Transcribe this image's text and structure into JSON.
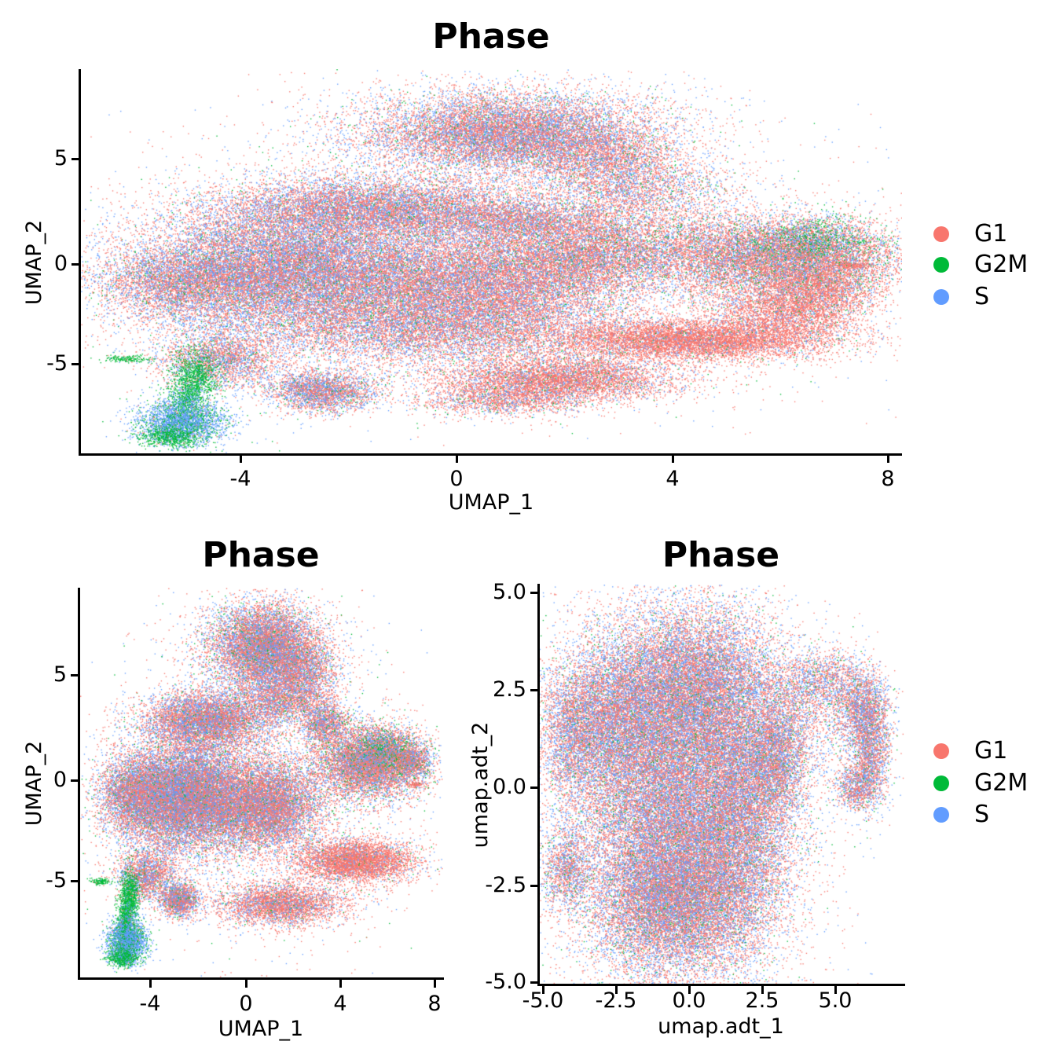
{
  "legend": {
    "items": [
      {
        "label": "G1",
        "color": "#F8766D"
      },
      {
        "label": "G2M",
        "color": "#00BA38"
      },
      {
        "label": "S",
        "color": "#619CFF"
      }
    ]
  },
  "chart_data": {
    "type": "scatter",
    "description": "Three UMAP single-cell embeddings colored by cell-cycle phase",
    "phases": [
      "G1",
      "G2M",
      "S"
    ],
    "phase_colors": {
      "G1": "#F8766D",
      "G2M": "#00BA38",
      "S": "#619CFF"
    },
    "legend_position": "right",
    "grid": false,
    "cluster_format": [
      "cx",
      "cy",
      "sx",
      "sy",
      "n_points",
      "weight_G1",
      "weight_G2M",
      "weight_S"
    ],
    "panels": [
      {
        "id": "umap-rna-overview",
        "title": "Phase",
        "xlabel": "UMAP_1",
        "ylabel": "UMAP_2",
        "x_tick_labels": [
          "-4",
          "0",
          "4",
          "8"
        ],
        "y_tick_labels": [
          "5",
          "0",
          "-5"
        ],
        "x_tick_values": [
          -4,
          0,
          4,
          8
        ],
        "y_tick_values": [
          5,
          0,
          -5
        ],
        "xlim": [
          -6.96,
          8.25
        ],
        "ylim": [
          -9.27,
          9.5
        ],
        "has_legend": true,
        "clusters": [
          [
            0.9,
            6.4,
            1.25,
            0.95,
            10000,
            0.58,
            0.05,
            0.37
          ],
          [
            0.9,
            6.3,
            2.0,
            1.5,
            2600,
            0.58,
            0.05,
            0.37
          ],
          [
            2.8,
            5.2,
            0.7,
            0.8,
            2200,
            0.62,
            0.05,
            0.33
          ],
          [
            3.3,
            3.6,
            0.9,
            0.8,
            2000,
            0.6,
            0.07,
            0.33
          ],
          [
            -1.6,
            2.7,
            1.5,
            0.8,
            9000,
            0.6,
            0.05,
            0.35
          ],
          [
            1.2,
            2.1,
            1.0,
            0.6,
            3000,
            0.62,
            0.05,
            0.33
          ],
          [
            -3.2,
            -0.3,
            1.4,
            1.5,
            18000,
            0.52,
            0.05,
            0.43
          ],
          [
            -5.2,
            -0.9,
            0.8,
            0.9,
            3500,
            0.6,
            0.06,
            0.34
          ],
          [
            0.3,
            -0.9,
            1.5,
            1.3,
            14000,
            0.62,
            0.05,
            0.33
          ],
          [
            -0.5,
            -3.2,
            1.8,
            0.9,
            7000,
            0.6,
            0.05,
            0.35
          ],
          [
            2.4,
            0.4,
            0.9,
            0.9,
            4000,
            0.65,
            0.06,
            0.29
          ],
          [
            5.9,
            0.3,
            1.2,
            1.0,
            10000,
            0.63,
            0.09,
            0.28
          ],
          [
            6.6,
            1.2,
            0.6,
            0.55,
            1400,
            0.35,
            0.35,
            0.3
          ],
          [
            3.6,
            1.3,
            1.2,
            1.0,
            1800,
            0.6,
            0.1,
            0.3
          ],
          [
            4.3,
            -3.7,
            1.3,
            0.5,
            7000,
            0.88,
            0.02,
            0.1
          ],
          [
            6.0,
            -2.4,
            0.7,
            0.8,
            3000,
            0.85,
            0.03,
            0.12
          ],
          [
            6.8,
            -1.2,
            0.5,
            0.8,
            2000,
            0.8,
            0.04,
            0.16
          ],
          [
            1.9,
            -5.6,
            1.1,
            0.55,
            5500,
            0.78,
            0.04,
            0.18
          ],
          [
            0.8,
            -6.6,
            0.8,
            0.4,
            1500,
            0.7,
            0.05,
            0.25
          ],
          [
            -2.5,
            -6.2,
            0.5,
            0.5,
            2800,
            0.55,
            0.06,
            0.39
          ],
          [
            -4.4,
            -4.6,
            0.6,
            0.7,
            2500,
            0.6,
            0.05,
            0.35
          ],
          [
            -4.85,
            -5.4,
            0.22,
            0.6,
            900,
            0.03,
            0.87,
            0.1
          ],
          [
            -5.0,
            -6.6,
            0.18,
            0.5,
            700,
            0.02,
            0.75,
            0.23
          ],
          [
            -5.1,
            -7.7,
            0.42,
            0.55,
            2600,
            0.03,
            0.25,
            0.72
          ],
          [
            -5.3,
            -8.4,
            0.3,
            0.25,
            700,
            0.02,
            0.8,
            0.18
          ],
          [
            -6.1,
            -4.6,
            0.22,
            0.1,
            160,
            0.02,
            0.93,
            0.05
          ],
          [
            7.3,
            -0.05,
            0.22,
            0.07,
            160,
            0.92,
            0.02,
            0.06
          ],
          [
            0.5,
            -0.5,
            4.2,
            3.4,
            3000,
            0.6,
            0.07,
            0.33
          ]
        ]
      },
      {
        "id": "umap-rna-small",
        "title": "Phase",
        "xlabel": "UMAP_1",
        "ylabel": "UMAP_2",
        "x_tick_labels": [
          "-4",
          "0",
          "4",
          "8"
        ],
        "y_tick_labels": [
          "5",
          "0",
          "-5"
        ],
        "x_tick_values": [
          -4,
          0,
          4,
          8
        ],
        "y_tick_values": [
          5,
          0,
          -5
        ],
        "xlim": [
          -6.96,
          8.28
        ],
        "ylim": [
          -9.62,
          9.35
        ],
        "has_legend": false,
        "clusters": [
          [
            0.7,
            6.5,
            1.05,
            1.0,
            7000,
            0.58,
            0.06,
            0.36
          ],
          [
            0.7,
            6.3,
            1.7,
            1.5,
            2000,
            0.58,
            0.06,
            0.36
          ],
          [
            2.4,
            5.2,
            0.7,
            0.9,
            2000,
            0.62,
            0.05,
            0.33
          ],
          [
            1.3,
            3.9,
            0.8,
            0.6,
            1500,
            0.6,
            0.06,
            0.34
          ],
          [
            -1.7,
            2.9,
            1.3,
            0.7,
            6000,
            0.6,
            0.05,
            0.35
          ],
          [
            -2.6,
            -0.8,
            1.4,
            1.3,
            15000,
            0.52,
            0.05,
            0.43
          ],
          [
            -4.8,
            -0.7,
            0.7,
            0.9,
            2500,
            0.6,
            0.06,
            0.34
          ],
          [
            0.8,
            -1.2,
            1.2,
            1.1,
            8000,
            0.62,
            0.05,
            0.33
          ],
          [
            3.3,
            2.8,
            0.5,
            0.6,
            1500,
            0.6,
            0.08,
            0.32
          ],
          [
            5.2,
            0.9,
            1.1,
            0.85,
            7000,
            0.62,
            0.09,
            0.29
          ],
          [
            5.9,
            1.5,
            0.6,
            0.5,
            900,
            0.4,
            0.3,
            0.3
          ],
          [
            7.0,
            0.9,
            0.4,
            0.4,
            800,
            0.6,
            0.08,
            0.32
          ],
          [
            4.6,
            -3.9,
            1.2,
            0.5,
            4500,
            0.85,
            0.03,
            0.12
          ],
          [
            1.4,
            -6.0,
            1.3,
            0.5,
            3500,
            0.75,
            0.04,
            0.21
          ],
          [
            -2.8,
            -5.8,
            0.4,
            0.4,
            1600,
            0.55,
            0.06,
            0.39
          ],
          [
            -4.2,
            -4.6,
            0.6,
            0.6,
            1800,
            0.6,
            0.05,
            0.35
          ],
          [
            -4.9,
            -5.6,
            0.2,
            0.55,
            800,
            0.03,
            0.87,
            0.1
          ],
          [
            -5.05,
            -6.7,
            0.17,
            0.45,
            600,
            0.02,
            0.75,
            0.23
          ],
          [
            -5.0,
            -7.8,
            0.4,
            0.5,
            2200,
            0.03,
            0.3,
            0.67
          ],
          [
            -5.2,
            -8.6,
            0.28,
            0.22,
            600,
            0.02,
            0.8,
            0.18
          ],
          [
            -6.1,
            -4.9,
            0.2,
            0.08,
            120,
            0.02,
            0.93,
            0.05
          ],
          [
            7.1,
            -0.2,
            0.15,
            0.07,
            80,
            0.9,
            0.02,
            0.08
          ],
          [
            0.3,
            -0.8,
            3.8,
            3.4,
            2500,
            0.6,
            0.07,
            0.33
          ]
        ]
      },
      {
        "id": "umap-adt",
        "title": "Phase",
        "xlabel": "umap.adt_1",
        "ylabel": "umap.adt_2",
        "x_tick_labels": [
          "-5.0",
          "-2.5",
          "0.0",
          "2.5",
          "5.0"
        ],
        "y_tick_labels": [
          "5.0",
          "2.5",
          "0.0",
          "-2.5",
          "-5.0"
        ],
        "x_tick_values": [
          -5.0,
          -2.5,
          0.0,
          2.5,
          5.0
        ],
        "y_tick_values": [
          5.0,
          2.5,
          0.0,
          -2.5,
          -5.0
        ],
        "xlim": [
          -5.13,
          7.37
        ],
        "ylim": [
          -5.06,
          5.2
        ],
        "has_legend": true,
        "clusters": [
          [
            -0.5,
            -0.3,
            1.7,
            2.2,
            26000,
            0.54,
            0.05,
            0.41
          ],
          [
            0.1,
            2.6,
            1.5,
            1.0,
            9000,
            0.54,
            0.05,
            0.41
          ],
          [
            -2.6,
            1.8,
            0.9,
            1.0,
            4500,
            0.54,
            0.05,
            0.41
          ],
          [
            -0.5,
            -2.9,
            1.4,
            0.9,
            9000,
            0.56,
            0.05,
            0.39
          ],
          [
            1.8,
            -0.5,
            0.9,
            1.8,
            8000,
            0.56,
            0.05,
            0.39
          ],
          [
            3.0,
            0.8,
            0.5,
            0.7,
            2500,
            0.55,
            0.06,
            0.39
          ],
          [
            -4.0,
            1.4,
            0.55,
            0.9,
            2500,
            0.55,
            0.06,
            0.39
          ],
          [
            -4.2,
            -2.1,
            0.4,
            0.5,
            1200,
            0.55,
            0.06,
            0.39
          ],
          [
            -0.4,
            -0.2,
            2.6,
            3.0,
            4000,
            0.55,
            0.06,
            0.39
          ],
          [
            3.8,
            2.4,
            0.7,
            0.5,
            700,
            0.58,
            0.06,
            0.36
          ],
          [
            4.8,
            2.8,
            0.7,
            0.35,
            900,
            0.58,
            0.05,
            0.37
          ],
          [
            5.9,
            2.0,
            0.45,
            0.5,
            1800,
            0.56,
            0.05,
            0.39
          ],
          [
            6.2,
            0.9,
            0.32,
            0.7,
            1800,
            0.56,
            0.05,
            0.39
          ],
          [
            5.7,
            0.0,
            0.35,
            0.3,
            800,
            0.56,
            0.05,
            0.39
          ],
          [
            4.5,
            1.5,
            0.8,
            0.9,
            700,
            0.58,
            0.06,
            0.36
          ]
        ]
      }
    ]
  }
}
